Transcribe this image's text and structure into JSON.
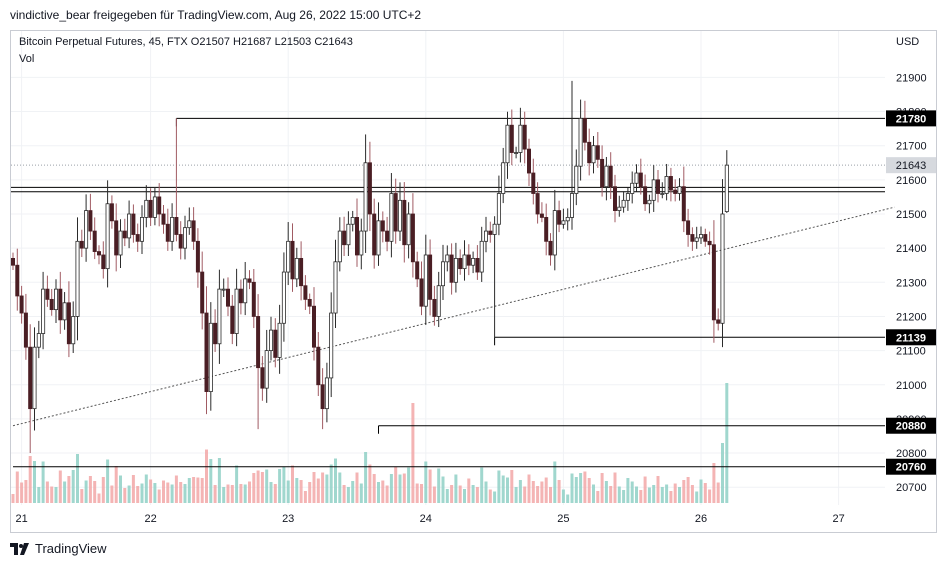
{
  "header": {
    "text": "vindictive_bear freigegeben für TradingView.com, Aug 26, 2022 15:00 UTC+2"
  },
  "symbol": {
    "line": "Bitcoin Perpetual Futures, 45, FTX  O21507  H21687  L21503  C21643",
    "vol_label": "Vol"
  },
  "footer": {
    "brand": "TradingView",
    "logo_icon": "tradingview-logo-icon"
  },
  "colors": {
    "up": "#2b2b2b",
    "down_body": "#4a1e24",
    "down_wick": "#a15b63",
    "vol_up": "#8fd0c6",
    "vol_down": "#f2a7a7",
    "grid": "#f0f2f5",
    "axis_text": "#131722"
  },
  "chart_data": {
    "type": "candlestick",
    "currency_label": "USD",
    "y_ticks": [
      20700,
      20800,
      20900,
      21000,
      21100,
      21200,
      21300,
      21400,
      21500,
      21600,
      21700,
      21800,
      21900
    ],
    "x_ticks": [
      {
        "label": "21",
        "index": 2
      },
      {
        "label": "22",
        "index": 32
      },
      {
        "label": "23",
        "index": 64
      },
      {
        "label": "24",
        "index": 96
      },
      {
        "label": "25",
        "index": 128
      },
      {
        "label": "26",
        "index": 160
      },
      {
        "label": "27",
        "index": 192
      }
    ],
    "last_price": {
      "label": "21643",
      "value": 21643
    },
    "horizontal_levels": [
      {
        "label": "21780",
        "value": 21780,
        "from_index": 38
      },
      {
        "label": "21139",
        "value": 21139,
        "from_index": 112
      },
      {
        "label": "20880",
        "value": 20880,
        "from_index": 85
      },
      {
        "label": "20760",
        "value": 20760,
        "from_index": 0
      }
    ],
    "double_line_values": [
      21565,
      21578
    ],
    "trendline": {
      "start": {
        "index": 0,
        "value": 20880
      },
      "end": {
        "index": 205,
        "value": 21520
      }
    },
    "candles_close": [
      21350,
      21260,
      21210,
      21110,
      20930,
      21110,
      21150,
      21280,
      21250,
      21220,
      21280,
      21190,
      21240,
      21120,
      21200,
      21420,
      21400,
      21510,
      21450,
      21390,
      21380,
      21340,
      21530,
      21480,
      21380,
      21450,
      21430,
      21500,
      21440,
      21420,
      21490,
      21540,
      21490,
      21550,
      21500,
      21470,
      21420,
      21490,
      21440,
      21400,
      21460,
      21480,
      21420,
      21330,
      21210,
      20980,
      21180,
      21120,
      21280,
      21280,
      21230,
      21150,
      21280,
      21240,
      21310,
      21300,
      21200,
      21050,
      20990,
      21100,
      21160,
      21080,
      21180,
      21330,
      21420,
      21310,
      21370,
      21290,
      21250,
      21230,
      21110,
      21000,
      20930,
      21020,
      21210,
      21360,
      21450,
      21410,
      21470,
      21490,
      21380,
      21450,
      21650,
      21500,
      21380,
      21480,
      21450,
      21420,
      21560,
      21450,
      21540,
      21410,
      21500,
      21360,
      21310,
      21230,
      21380,
      21250,
      21200,
      21290,
      21360,
      21380,
      21300,
      21370,
      21340,
      21380,
      21350,
      21370,
      21330,
      21420,
      21450,
      21440,
      21470,
      21560,
      21650,
      21760,
      21680,
      21680,
      21760,
      21690,
      21620,
      21560,
      21500,
      21490,
      21420,
      21380,
      21510,
      21470,
      21480,
      21490,
      21560,
      21640,
      21780,
      21710,
      21650,
      21700,
      21660,
      21580,
      21640,
      21580,
      21510,
      21520,
      21540,
      21560,
      21590,
      21620,
      21580,
      21530,
      21540,
      21600,
      21560,
      21560,
      21610,
      21570,
      21560,
      21580,
      21480,
      21440,
      21420,
      21430,
      21440,
      21420,
      21410,
      21190,
      21180,
      21500,
      21643
    ]
  }
}
